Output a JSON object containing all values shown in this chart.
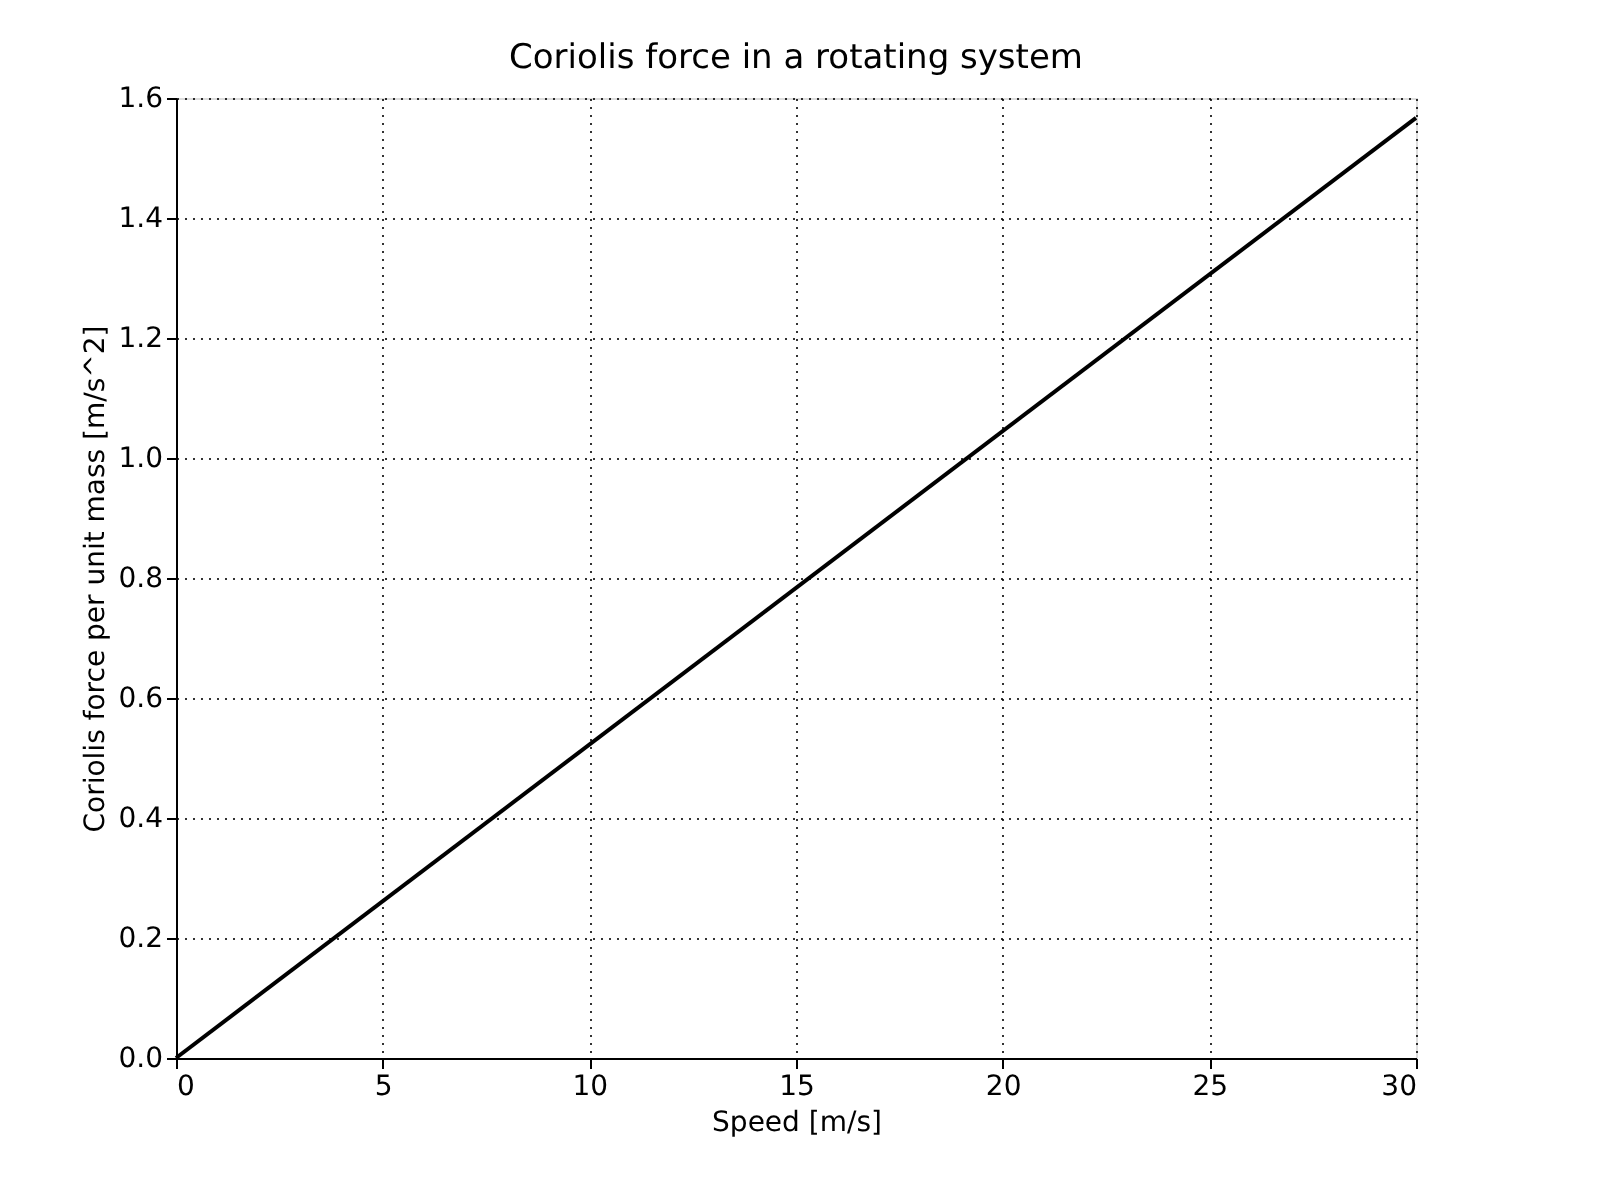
{
  "chart_data": {
    "type": "line",
    "title": "Coriolis force in a rotating system",
    "xlabel": "Speed [m/s]",
    "ylabel": "Coriolis force per unit mass [m/s^2]",
    "xlim": [
      0,
      30
    ],
    "xticks": [
      0,
      5,
      10,
      15,
      20,
      25,
      30
    ],
    "ylim": [
      0,
      1.6
    ],
    "yticks": [
      {
        "value": 0,
        "label": "0.0"
      },
      0.2,
      0.4,
      0.6,
      0.8,
      {
        "value": 1,
        "label": "1.0"
      },
      1.2,
      1.4,
      1.6
    ],
    "grid": true,
    "line_style": "solid",
    "marker": "none",
    "series": [
      {
        "color": "#000000",
        "x": [
          0,
          30
        ],
        "values": [
          0,
          1.567
        ]
      }
    ]
  }
}
